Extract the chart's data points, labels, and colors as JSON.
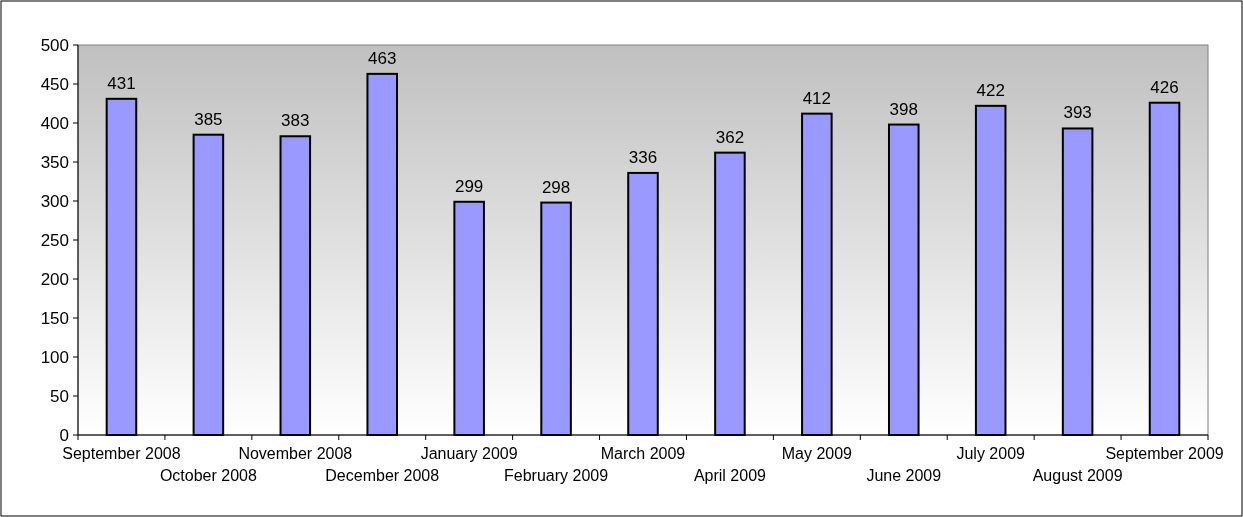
{
  "chart_data": {
    "type": "bar",
    "categories": [
      "September 2008",
      "October 2008",
      "November 2008",
      "December 2008",
      "January 2009",
      "February 2009",
      "March 2009",
      "April 2009",
      "May 2009",
      "June 2009",
      "July 2009",
      "August 2009",
      "September 2009"
    ],
    "values": [
      431,
      385,
      383,
      463,
      299,
      298,
      336,
      362,
      412,
      398,
      422,
      393,
      426
    ],
    "color": "#9999ff",
    "ylim": [
      0,
      500
    ],
    "yticks": [
      0,
      50,
      100,
      150,
      200,
      250,
      300,
      350,
      400,
      450,
      500
    ],
    "grid": false,
    "data_labels": true
  }
}
